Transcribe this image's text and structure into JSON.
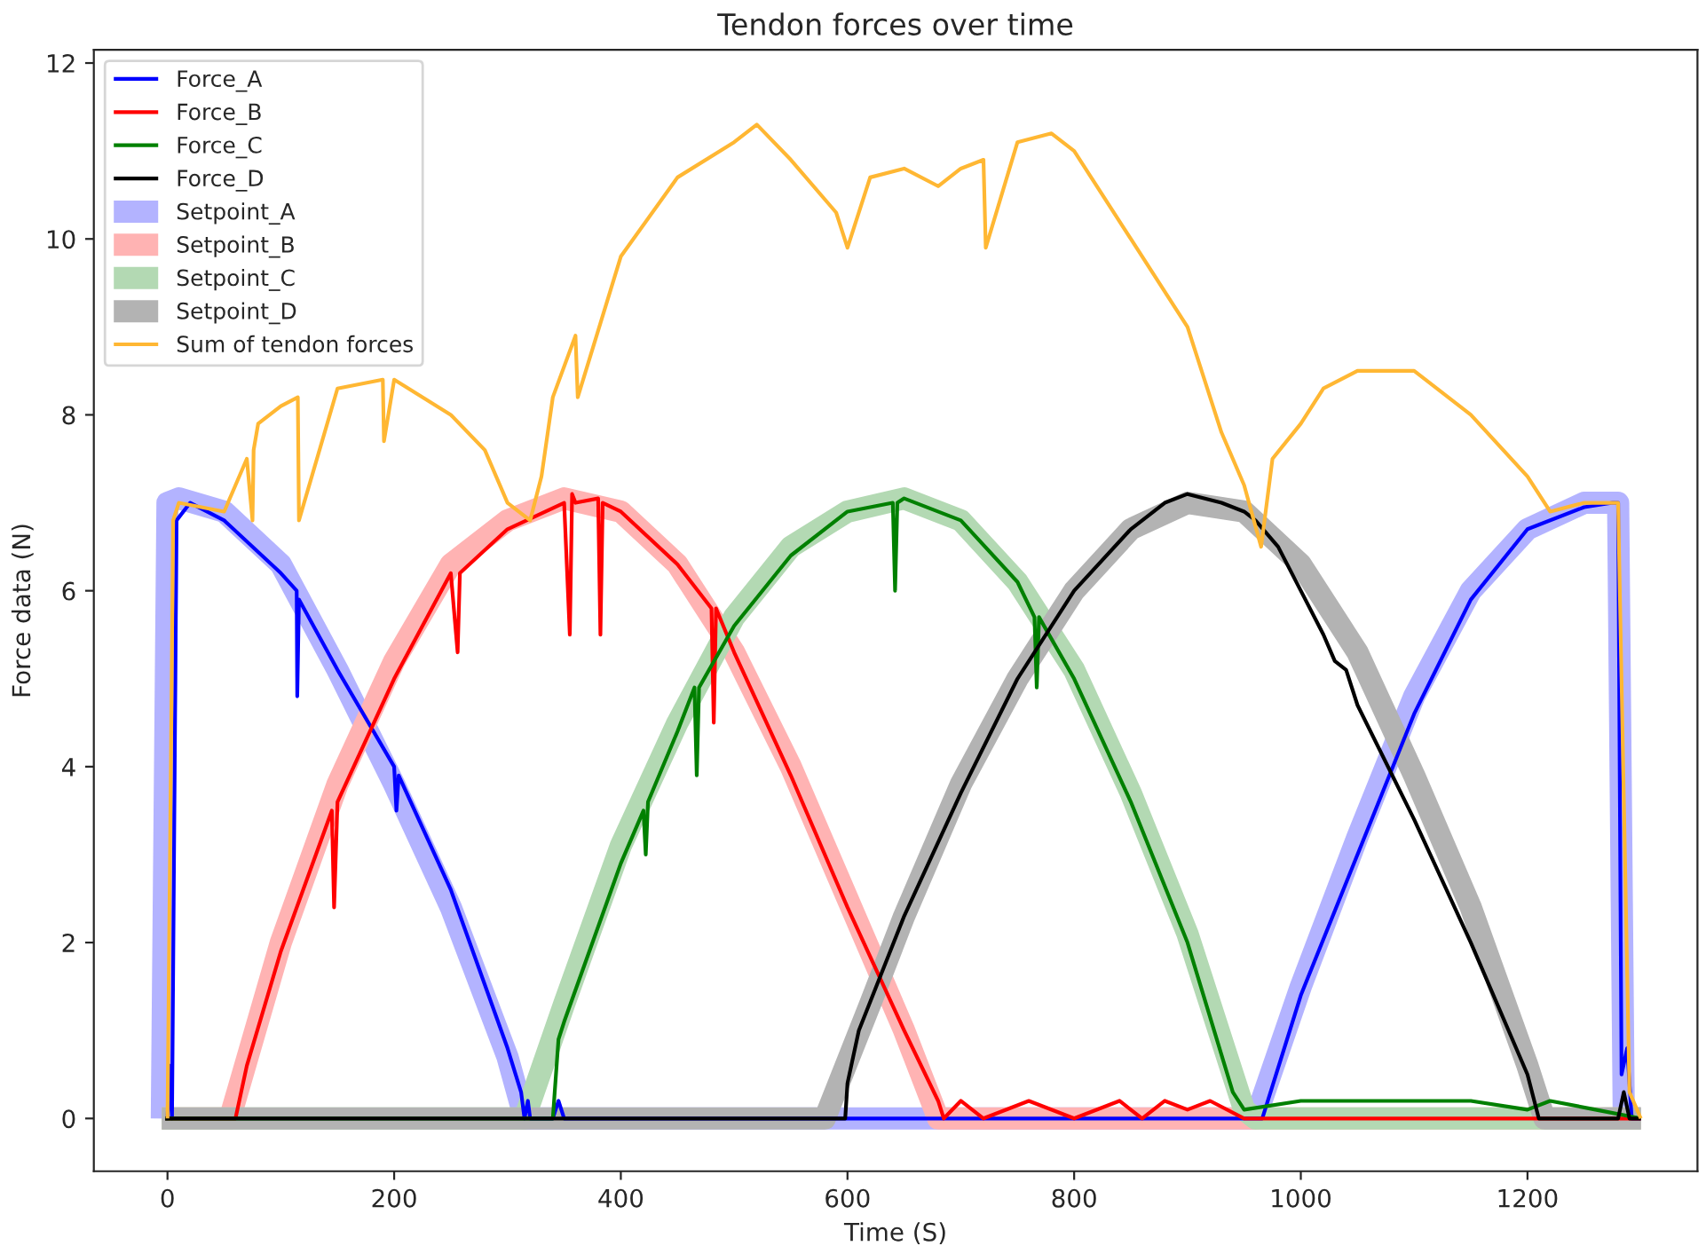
{
  "chart_data": {
    "type": "line",
    "title": "Tendon forces over time",
    "xlabel": "Time (S)",
    "ylabel": "Force data (N)",
    "xlim": [
      -65,
      1350
    ],
    "ylim": [
      -0.6,
      12.15
    ],
    "xticks": [
      0,
      200,
      400,
      600,
      800,
      1000,
      1200
    ],
    "yticks": [
      0,
      2,
      4,
      6,
      8,
      10,
      12
    ],
    "grid": false,
    "legend": "top left",
    "series": [
      {
        "name": "Force_A",
        "color": "#0000ff",
        "x": [
          -2,
          0,
          2,
          4,
          8,
          20,
          50,
          100,
          114,
          114.5,
          116,
          150,
          200,
          202,
          204,
          250,
          300,
          312,
          315,
          318,
          320,
          340,
          345,
          350,
          600,
          960,
          966,
          1000,
          1050,
          1100,
          1150,
          1200,
          1250,
          1275,
          1280,
          1283,
          1288,
          1292,
          1300
        ],
        "values": [
          0,
          0,
          0.6,
          0,
          6.8,
          7.0,
          6.8,
          6.2,
          6.0,
          4.8,
          5.9,
          5.1,
          4.0,
          3.5,
          3.9,
          2.6,
          0.8,
          0.3,
          0,
          0.2,
          0,
          0,
          0.2,
          0,
          0,
          0,
          0,
          1.4,
          3.0,
          4.6,
          5.9,
          6.7,
          6.95,
          7.0,
          7.0,
          0.5,
          0.8,
          0,
          0
        ]
      },
      {
        "name": "Force_B",
        "color": "#ff0000",
        "x": [
          -2,
          60,
          65,
          70,
          100,
          145,
          147,
          150,
          200,
          250,
          256,
          258,
          300,
          350,
          355,
          357,
          360,
          380,
          382,
          384,
          400,
          450,
          480,
          482,
          484,
          500,
          550,
          600,
          650,
          680,
          685,
          700,
          720,
          760,
          800,
          840,
          860,
          880,
          900,
          920,
          950,
          1300
        ],
        "values": [
          0,
          0,
          0.3,
          0.6,
          1.9,
          3.5,
          2.4,
          3.6,
          5.0,
          6.2,
          5.3,
          6.2,
          6.7,
          7.0,
          5.5,
          7.1,
          7.0,
          7.05,
          5.5,
          7.0,
          6.9,
          6.3,
          5.8,
          4.5,
          5.8,
          5.3,
          3.9,
          2.4,
          1.0,
          0.2,
          0,
          0.2,
          0,
          0.2,
          0,
          0.2,
          0,
          0.2,
          0.1,
          0.2,
          0,
          0
        ]
      },
      {
        "name": "Force_C",
        "color": "#008000",
        "x": [
          -2,
          340,
          345,
          350,
          400,
          420,
          422,
          424,
          450,
          465,
          467,
          469,
          500,
          550,
          600,
          640,
          642,
          644,
          650,
          700,
          750,
          765,
          767,
          769,
          800,
          850,
          900,
          940,
          950,
          1000,
          1050,
          1100,
          1150,
          1200,
          1220,
          1260,
          1300
        ],
        "values": [
          0,
          0,
          0.9,
          1.1,
          2.9,
          3.5,
          3.0,
          3.6,
          4.4,
          4.9,
          3.9,
          4.9,
          5.6,
          6.4,
          6.9,
          7.0,
          6.0,
          7.0,
          7.05,
          6.8,
          6.1,
          5.7,
          4.9,
          5.7,
          5.0,
          3.6,
          2.0,
          0.3,
          0.1,
          0.2,
          0.2,
          0.2,
          0.2,
          0.1,
          0.2,
          0.1,
          0
        ]
      },
      {
        "name": "Force_D",
        "color": "#000000",
        "x": [
          -2,
          598,
          600,
          610,
          650,
          700,
          750,
          800,
          850,
          880,
          900,
          930,
          950,
          960,
          980,
          1000,
          1020,
          1030,
          1040,
          1050,
          1100,
          1150,
          1200,
          1210,
          1280,
          1285,
          1290,
          1300
        ],
        "values": [
          0,
          0,
          0.4,
          1.0,
          2.3,
          3.7,
          5.0,
          6.0,
          6.7,
          7.0,
          7.1,
          7.0,
          6.9,
          6.8,
          6.5,
          6.0,
          5.5,
          5.2,
          5.1,
          4.7,
          3.4,
          2.0,
          0.5,
          0,
          0,
          0.3,
          0,
          0
        ]
      },
      {
        "name": "Setpoint_A",
        "color": "#b3b3ff",
        "x": [
          -5,
          0,
          10,
          50,
          100,
          150,
          200,
          250,
          300,
          315,
          960,
          1000,
          1050,
          1100,
          1150,
          1200,
          1250,
          1280,
          1285,
          1300
        ],
        "values": [
          0,
          7.0,
          7.05,
          6.9,
          6.3,
          5.1,
          3.8,
          2.4,
          0.7,
          0,
          0,
          1.5,
          3.2,
          4.8,
          6.0,
          6.7,
          7.0,
          7.0,
          0,
          0
        ]
      },
      {
        "name": "Setpoint_B",
        "color": "#ffb3b3",
        "x": [
          -5,
          55,
          100,
          150,
          200,
          250,
          300,
          350,
          400,
          450,
          500,
          550,
          600,
          650,
          680,
          1300
        ],
        "values": [
          0,
          0,
          2.0,
          3.8,
          5.2,
          6.3,
          6.8,
          7.05,
          6.9,
          6.3,
          5.3,
          4.0,
          2.5,
          1.0,
          0,
          0
        ]
      },
      {
        "name": "Setpoint_C",
        "color": "#b3d9b3",
        "x": [
          -5,
          315,
          350,
          400,
          450,
          500,
          550,
          600,
          650,
          700,
          750,
          800,
          850,
          900,
          950,
          960,
          1300
        ],
        "values": [
          0,
          0,
          1.3,
          3.1,
          4.5,
          5.7,
          6.5,
          6.9,
          7.05,
          6.8,
          6.1,
          5.1,
          3.7,
          2.1,
          0.1,
          0,
          0
        ]
      },
      {
        "name": "Setpoint_D",
        "color": "#b3b3b3",
        "x": [
          -5,
          580,
          620,
          650,
          700,
          750,
          800,
          850,
          900,
          950,
          1000,
          1050,
          1100,
          1150,
          1200,
          1215,
          1300
        ],
        "values": [
          0,
          0,
          1.3,
          2.3,
          3.8,
          5.0,
          6.0,
          6.7,
          7.0,
          6.9,
          6.3,
          5.3,
          3.9,
          2.4,
          0.6,
          0,
          0
        ]
      },
      {
        "name": "Sum of tendon forces",
        "color": "#ffb733",
        "x": [
          0,
          5,
          10,
          50,
          60,
          70,
          75,
          76,
          80,
          100,
          115,
          116,
          150,
          190,
          191,
          200,
          250,
          280,
          300,
          320,
          330,
          340,
          360,
          362,
          400,
          450,
          500,
          520,
          550,
          590,
          600,
          620,
          650,
          680,
          700,
          720,
          722,
          750,
          780,
          800,
          850,
          900,
          930,
          950,
          965,
          975,
          1000,
          1020,
          1050,
          1100,
          1150,
          1200,
          1220,
          1250,
          1280,
          1290,
          1300
        ],
        "values": [
          0,
          6.8,
          7.0,
          6.9,
          7.2,
          7.5,
          6.8,
          7.6,
          7.9,
          8.1,
          8.2,
          6.8,
          8.3,
          8.4,
          7.7,
          8.4,
          8.0,
          7.6,
          7.0,
          6.8,
          7.3,
          8.2,
          8.9,
          8.2,
          9.8,
          10.7,
          11.1,
          11.3,
          10.9,
          10.3,
          9.9,
          10.7,
          10.8,
          10.6,
          10.8,
          10.9,
          9.9,
          11.1,
          11.2,
          11.0,
          10.0,
          9.0,
          7.8,
          7.2,
          6.5,
          7.5,
          7.9,
          8.3,
          8.5,
          8.5,
          8.0,
          7.3,
          6.9,
          7.0,
          7.0,
          0.3,
          0
        ]
      }
    ]
  }
}
